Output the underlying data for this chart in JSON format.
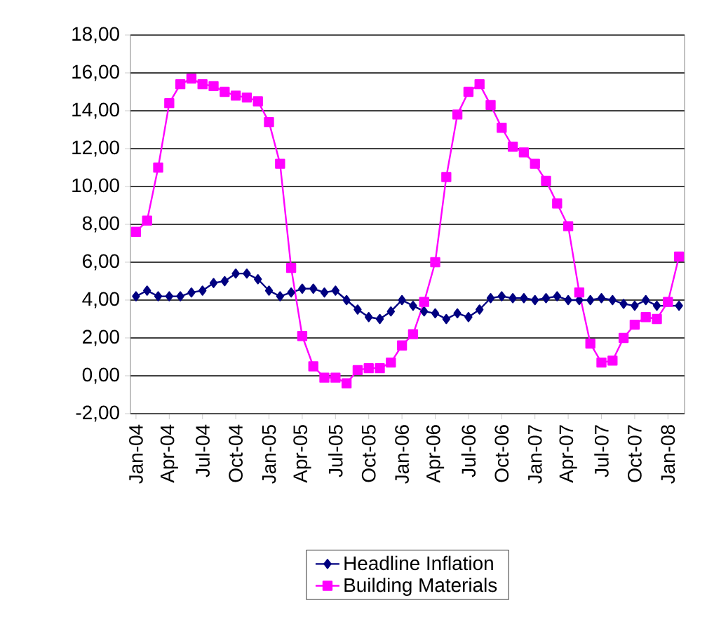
{
  "chart_data": {
    "type": "line",
    "categories": [
      "Jan-04",
      null,
      null,
      "Apr-04",
      null,
      null,
      "Jul-04",
      null,
      null,
      "Oct-04",
      null,
      null,
      "Jan-05",
      null,
      null,
      "Apr-05",
      null,
      null,
      "Jul-05",
      null,
      null,
      "Oct-05",
      null,
      null,
      "Jan-06",
      null,
      null,
      "Apr-06",
      null,
      null,
      "Jul-06",
      null,
      null,
      "Oct-06",
      null,
      null,
      "Jan-07",
      null,
      null,
      "Apr-07",
      null,
      null,
      "Jul-07",
      null,
      null,
      "Oct-07",
      null,
      null,
      "Jan-08",
      null
    ],
    "series": [
      {
        "name": "Headline Inflation",
        "color": "#000080",
        "marker": "diamond",
        "values": [
          4.2,
          4.5,
          4.2,
          4.2,
          4.2,
          4.4,
          4.5,
          4.9,
          5.0,
          5.4,
          5.4,
          5.1,
          4.5,
          4.2,
          4.4,
          4.6,
          4.6,
          4.4,
          4.5,
          4.0,
          3.5,
          3.1,
          3.0,
          3.4,
          4.0,
          3.7,
          3.4,
          3.3,
          3.0,
          3.3,
          3.1,
          3.5,
          4.1,
          4.2,
          4.1,
          4.1,
          4.0,
          4.1,
          4.2,
          4.0,
          4.0,
          4.0,
          4.1,
          4.0,
          3.8,
          3.7,
          4.0,
          3.7,
          null,
          3.7
        ]
      },
      {
        "name": "Building Materials",
        "color": "#ff00ff",
        "marker": "square",
        "values": [
          7.6,
          8.2,
          11.0,
          14.4,
          15.4,
          15.7,
          15.4,
          15.3,
          15.0,
          14.8,
          14.7,
          14.5,
          13.4,
          11.2,
          5.7,
          2.1,
          0.5,
          -0.1,
          -0.1,
          -0.4,
          0.3,
          0.4,
          0.4,
          0.7,
          1.6,
          2.2,
          3.9,
          6.0,
          10.5,
          13.8,
          15.0,
          15.4,
          14.3,
          13.1,
          12.1,
          11.8,
          11.2,
          10.3,
          9.1,
          7.9,
          4.4,
          1.7,
          0.7,
          0.8,
          2.0,
          2.7,
          3.1,
          3.0,
          3.9,
          6.3
        ]
      }
    ],
    "ylim": [
      -2,
      18
    ],
    "yticks": [
      {
        "value": -2,
        "label": "-2,00"
      },
      {
        "value": 0,
        "label": "0,00"
      },
      {
        "value": 2,
        "label": "2,00"
      },
      {
        "value": 4,
        "label": "4,00"
      },
      {
        "value": 6,
        "label": "6,00"
      },
      {
        "value": 8,
        "label": "8,00"
      },
      {
        "value": 10,
        "label": "10,00"
      },
      {
        "value": 12,
        "label": "12,00"
      },
      {
        "value": 14,
        "label": "14,00"
      },
      {
        "value": 16,
        "label": "16,00"
      },
      {
        "value": 18,
        "label": "18,00"
      }
    ],
    "grid": "y",
    "legend": "bottom",
    "line_style": "solid"
  }
}
